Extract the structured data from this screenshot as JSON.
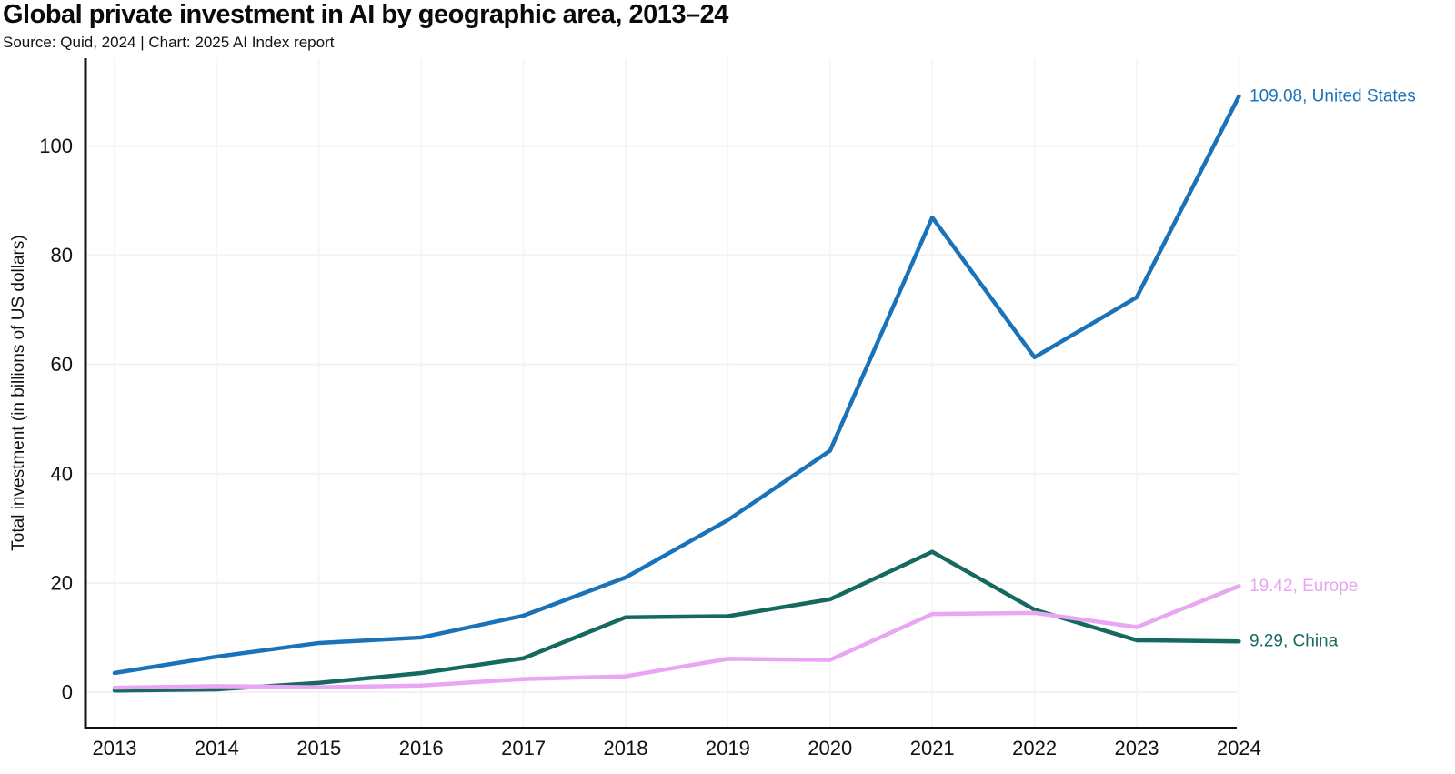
{
  "header": {
    "title": "Global private investment in AI by geographic area, 2013–24",
    "source_line": "Source: Quid, 2024 | Chart: 2025 AI Index report"
  },
  "colors": {
    "united_states": "#1a72b8",
    "europe": "#e9a6f2",
    "china": "#15695f",
    "axis": "#111111",
    "tick_text": "#111111",
    "gridline_h": "#f2f2f2",
    "gridline_v": "#f6f6f6",
    "background": "#ffffff"
  },
  "chart_data": {
    "type": "line",
    "title": "Global private investment in AI by geographic area, 2013–24",
    "subtitle": "Source: Quid, 2024 | Chart: 2025 AI Index report",
    "xlabel": "",
    "ylabel": "Total investment (in billions of US dollars)",
    "x": [
      2013,
      2014,
      2015,
      2016,
      2017,
      2018,
      2019,
      2020,
      2021,
      2022,
      2023,
      2024
    ],
    "yticks": [
      0,
      20,
      40,
      60,
      80,
      100
    ],
    "ylim": [
      0,
      116
    ],
    "grid": true,
    "legend_position": "end-of-line-labels",
    "series": [
      {
        "name": "United States",
        "color": "#1a72b8",
        "end_label": "109.08, United States",
        "final_value": 109.08,
        "values": [
          3.5,
          6.5,
          9.0,
          10.0,
          14.0,
          21.0,
          31.5,
          44.2,
          86.9,
          61.3,
          72.3,
          109.08
        ]
      },
      {
        "name": "Europe",
        "color": "#e9a6f2",
        "end_label": "19.42, Europe",
        "final_value": 19.42,
        "values": [
          0.8,
          1.1,
          0.9,
          1.2,
          2.4,
          2.9,
          6.1,
          5.9,
          14.3,
          14.5,
          11.9,
          19.42
        ]
      },
      {
        "name": "China",
        "color": "#15695f",
        "end_label": "9.29, China",
        "final_value": 9.29,
        "values": [
          0.3,
          0.5,
          1.7,
          3.5,
          6.2,
          13.7,
          13.9,
          17.0,
          25.7,
          15.1,
          9.5,
          9.29
        ]
      }
    ]
  }
}
